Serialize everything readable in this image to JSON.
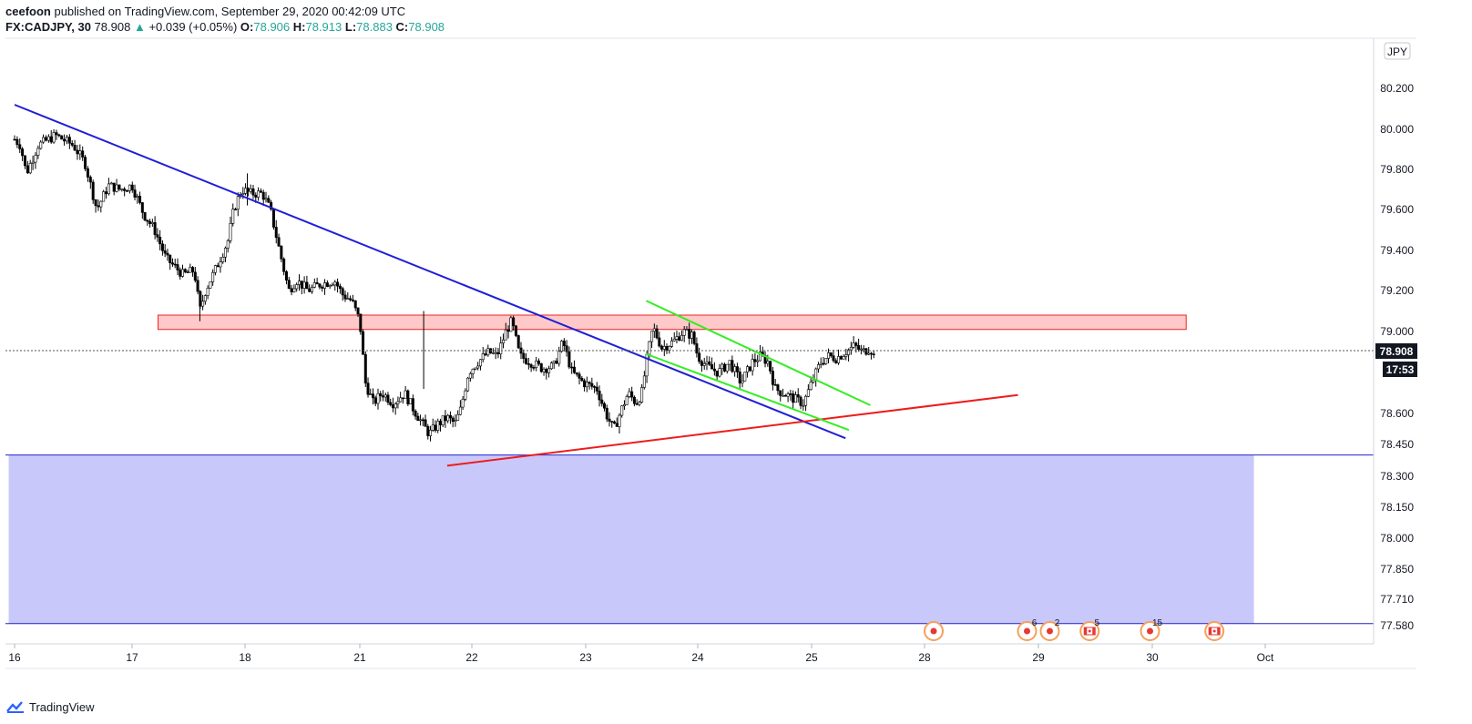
{
  "header": {
    "author": "ceefoon",
    "published": "published on TradingView.com, September 29, 2020 00:42:09 UTC",
    "symbol": "FX:CADJPY, 30",
    "last": "78.908",
    "change": "+0.039 (+0.05%)",
    "o_label": "O:",
    "o": "78.906",
    "h_label": "H:",
    "h": "78.913",
    "l_label": "L:",
    "l": "78.883",
    "c_label": "C:",
    "c": "78.908"
  },
  "footer": {
    "brand": "TradingView",
    "logo_icon": "tradingview-logo-icon"
  },
  "colors": {
    "up": "#26a69a",
    "candle": "#000000",
    "downtrend": "#1f1fd6",
    "uptrend": "#ee1c1c",
    "channel": "#33ee22",
    "resistance_fill": "#ffc9c9",
    "resistance_border": "#ee2222",
    "support_fill": "#c8c8fa",
    "support_border": "#2222cc"
  },
  "chart_data": {
    "type": "candlestick",
    "symbol": "FX:CADJPY",
    "interval": "30",
    "currency": "JPY",
    "price_axis_ticks": [
      "80.200",
      "80.000",
      "79.800",
      "79.600",
      "79.400",
      "79.200",
      "79.000",
      "78.600",
      "78.450",
      "78.300",
      "78.150",
      "78.000",
      "77.850",
      "77.710",
      "77.580"
    ],
    "time_axis_ticks": [
      "16",
      "17",
      "18",
      "21",
      "22",
      "23",
      "24",
      "25",
      "28",
      "29",
      "30",
      "Oct"
    ],
    "last_price": "78.908",
    "countdown": "17:53",
    "price_path": [
      [
        0,
        79.95
      ],
      [
        0.05,
        79.92
      ],
      [
        0.1,
        79.78
      ],
      [
        0.2,
        79.92
      ],
      [
        0.35,
        79.97
      ],
      [
        0.5,
        79.92
      ],
      [
        0.6,
        79.83
      ],
      [
        0.7,
        79.6
      ],
      [
        0.8,
        79.72
      ],
      [
        0.9,
        79.7
      ],
      [
        1.0,
        79.72
      ],
      [
        1.1,
        79.58
      ],
      [
        1.2,
        79.5
      ],
      [
        1.3,
        79.36
      ],
      [
        1.45,
        79.28
      ],
      [
        1.55,
        79.3
      ],
      [
        1.6,
        79.1
      ],
      [
        1.65,
        79.2
      ],
      [
        1.75,
        79.32
      ],
      [
        1.85,
        79.45
      ],
      [
        1.9,
        79.6
      ],
      [
        1.97,
        79.7
      ],
      [
        2.05,
        79.68
      ],
      [
        2.15,
        79.68
      ],
      [
        2.22,
        79.6
      ],
      [
        2.3,
        79.4
      ],
      [
        2.38,
        79.2
      ],
      [
        2.45,
        79.25
      ],
      [
        2.55,
        79.2
      ],
      [
        2.65,
        79.23
      ],
      [
        2.78,
        79.25
      ],
      [
        2.85,
        79.18
      ],
      [
        2.93,
        79.15
      ],
      [
        3.0,
        79.05
      ],
      [
        3.05,
        78.75
      ],
      [
        3.12,
        78.65
      ],
      [
        3.2,
        78.7
      ],
      [
        3.3,
        78.65
      ],
      [
        3.4,
        78.7
      ],
      [
        3.48,
        78.62
      ],
      [
        3.56,
        78.55
      ],
      [
        3.62,
        78.5
      ],
      [
        3.7,
        78.55
      ],
      [
        3.78,
        78.58
      ],
      [
        3.85,
        78.55
      ],
      [
        3.9,
        78.62
      ],
      [
        3.97,
        78.8
      ],
      [
        4.05,
        78.85
      ],
      [
        4.15,
        78.9
      ],
      [
        4.22,
        78.88
      ],
      [
        4.3,
        79.0
      ],
      [
        4.35,
        79.05
      ],
      [
        4.42,
        78.88
      ],
      [
        4.52,
        78.85
      ],
      [
        4.62,
        78.82
      ],
      [
        4.72,
        78.83
      ],
      [
        4.8,
        78.95
      ],
      [
        4.88,
        78.8
      ],
      [
        4.98,
        78.75
      ],
      [
        5.1,
        78.72
      ],
      [
        5.18,
        78.6
      ],
      [
        5.25,
        78.52
      ],
      [
        5.32,
        78.62
      ],
      [
        5.38,
        78.7
      ],
      [
        5.45,
        78.65
      ],
      [
        5.5,
        78.7
      ],
      [
        5.55,
        78.88
      ],
      [
        5.6,
        79.02
      ],
      [
        5.68,
        78.92
      ],
      [
        5.78,
        78.95
      ],
      [
        5.87,
        79.0
      ],
      [
        5.95,
        78.98
      ],
      [
        6.0,
        78.88
      ],
      [
        6.08,
        78.83
      ],
      [
        6.18,
        78.8
      ],
      [
        6.28,
        78.85
      ],
      [
        6.38,
        78.75
      ],
      [
        6.48,
        78.85
      ],
      [
        6.55,
        78.88
      ],
      [
        6.62,
        78.85
      ],
      [
        6.68,
        78.72
      ],
      [
        6.75,
        78.7
      ],
      [
        6.85,
        78.67
      ],
      [
        6.93,
        78.65
      ],
      [
        7.0,
        78.75
      ],
      [
        7.08,
        78.85
      ],
      [
        7.15,
        78.88
      ],
      [
        7.22,
        78.87
      ],
      [
        7.3,
        78.9
      ],
      [
        7.38,
        78.93
      ],
      [
        7.45,
        78.9
      ],
      [
        7.52,
        78.92
      ],
      [
        7.55,
        78.88
      ]
    ],
    "annotations": [
      {
        "type": "trendline",
        "name": "downtrend",
        "from": [
          0,
          80.28
        ],
        "to": [
          7.3,
          78.48
        ]
      },
      {
        "type": "trendline",
        "name": "uptrend",
        "from": [
          3.78,
          78.35
        ],
        "to": [
          8.82,
          78.69
        ]
      },
      {
        "type": "trendline",
        "name": "channel-upper",
        "from": [
          5.54,
          79.15
        ],
        "to": [
          7.52,
          78.64
        ]
      },
      {
        "type": "trendline",
        "name": "channel-lower",
        "from": [
          5.54,
          78.89
        ],
        "to": [
          7.33,
          78.52
        ]
      },
      {
        "type": "zone",
        "name": "resistance",
        "price_top": 79.08,
        "price_bottom": 79.01,
        "from": 1.23,
        "to": 10.3
      },
      {
        "type": "zone",
        "name": "support",
        "price_top": 78.4,
        "price_bottom": 77.59,
        "from": -0.05,
        "to": 10.9
      }
    ],
    "event_markers": [
      {
        "time": 8.08,
        "kind": "dot",
        "badge": ""
      },
      {
        "time": 8.9,
        "kind": "dot",
        "badge": "6"
      },
      {
        "time": 9.1,
        "kind": "dot",
        "badge": "2"
      },
      {
        "time": 9.45,
        "kind": "flag",
        "badge": "5"
      },
      {
        "time": 9.98,
        "kind": "dot",
        "badge": "15"
      },
      {
        "time": 10.55,
        "kind": "flag",
        "badge": ""
      }
    ]
  }
}
